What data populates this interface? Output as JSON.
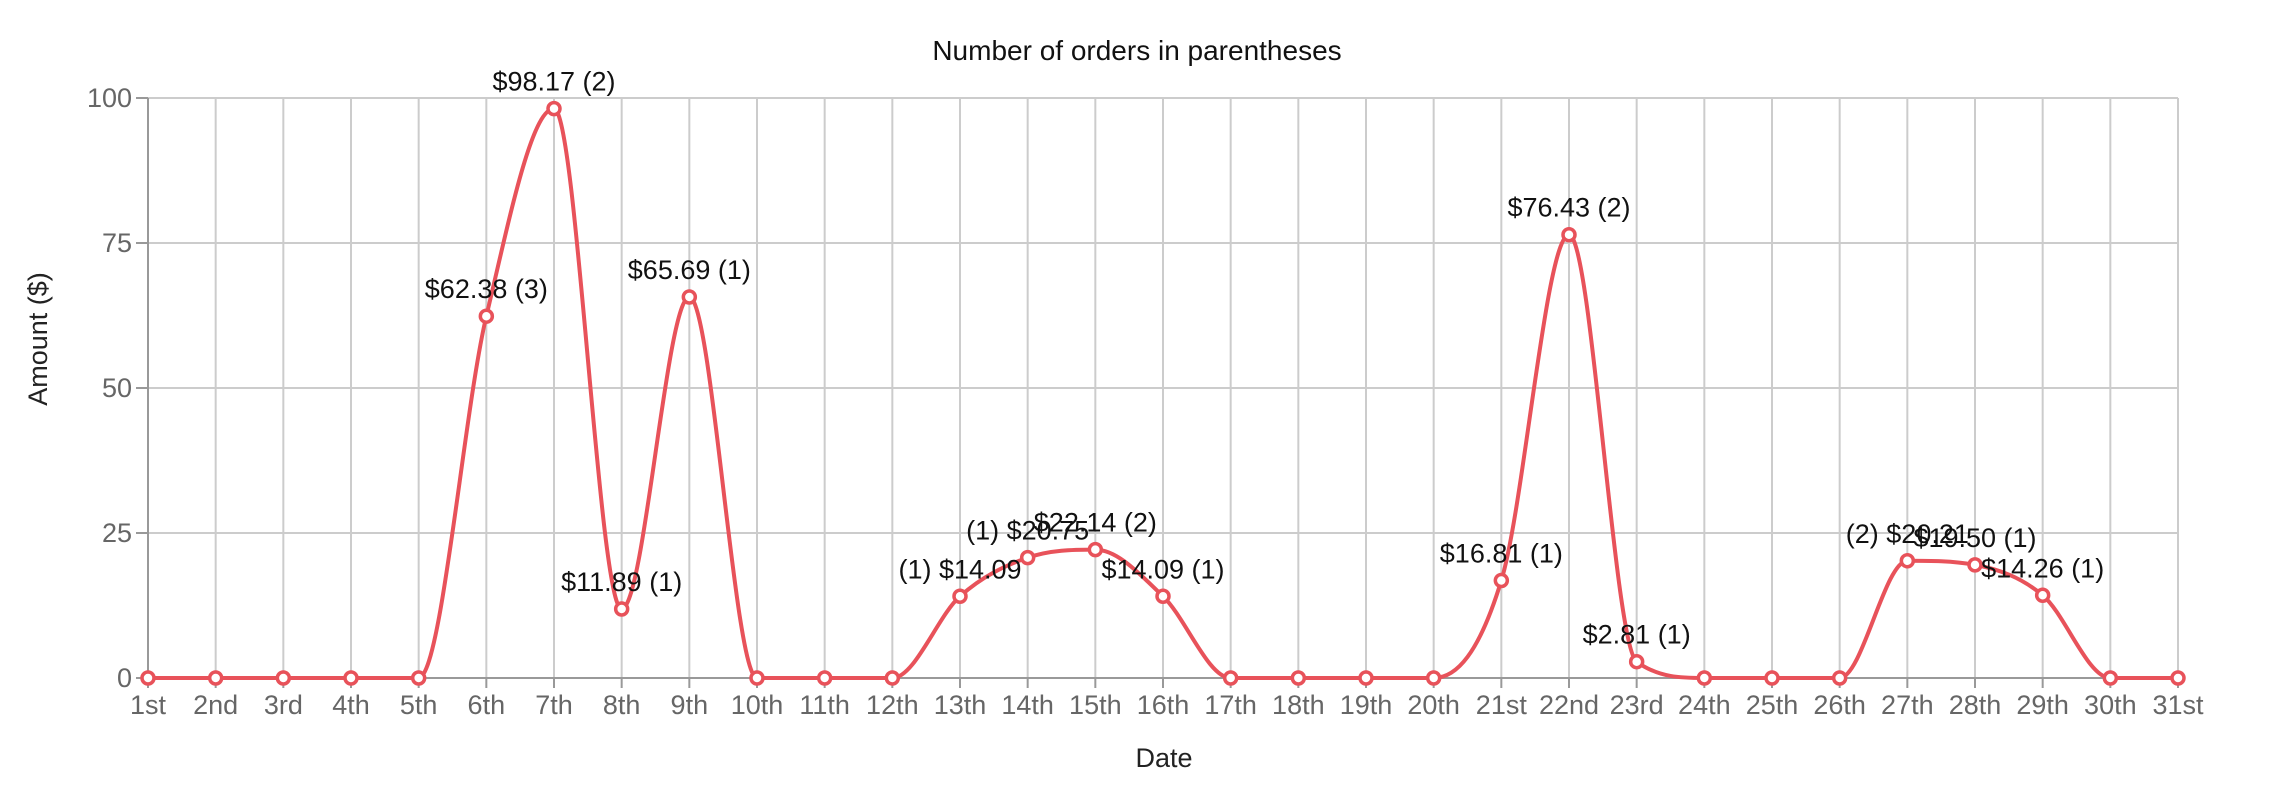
{
  "chart_data": {
    "type": "line",
    "title": "Number of orders in parentheses",
    "xlabel": "Date",
    "ylabel": "Amount ($)",
    "categories": [
      "1st",
      "2nd",
      "3rd",
      "4th",
      "5th",
      "6th",
      "7th",
      "8th",
      "9th",
      "10th",
      "11th",
      "12th",
      "13th",
      "14th",
      "15th",
      "16th",
      "17th",
      "18th",
      "19th",
      "20th",
      "21st",
      "22nd",
      "23rd",
      "24th",
      "25th",
      "26th",
      "27th",
      "28th",
      "29th",
      "30th",
      "31st"
    ],
    "series": [
      {
        "color": "#e8525a",
        "values": [
          0,
          0,
          0,
          0,
          0,
          62.38,
          98.17,
          11.89,
          65.69,
          0,
          0,
          0,
          14.09,
          20.75,
          22.14,
          14.09,
          0,
          0,
          0,
          0,
          16.81,
          76.43,
          2.81,
          0,
          0,
          0,
          20.21,
          19.5,
          14.26,
          0,
          0
        ],
        "labels": [
          "",
          "",
          "",
          "",
          "",
          "$62.38 (3)",
          "$98.17 (2)",
          "$11.89 (1)",
          "$65.69 (1)",
          "",
          "",
          "",
          "(1) $14.09",
          "(1) $20.75",
          "$22.14 (2)",
          "$14.09 (1)",
          "",
          "",
          "",
          "",
          "$16.81 (1)",
          "$76.43 (2)",
          "$2.81 (1)",
          "",
          "",
          "",
          "(2) $20.21",
          "$19.50 (1)",
          "$14.26 (1)",
          "",
          ""
        ]
      }
    ],
    "ylim": [
      0,
      100
    ],
    "yticks": [
      0,
      25,
      50,
      75,
      100
    ],
    "grid": true,
    "legend": "none"
  }
}
